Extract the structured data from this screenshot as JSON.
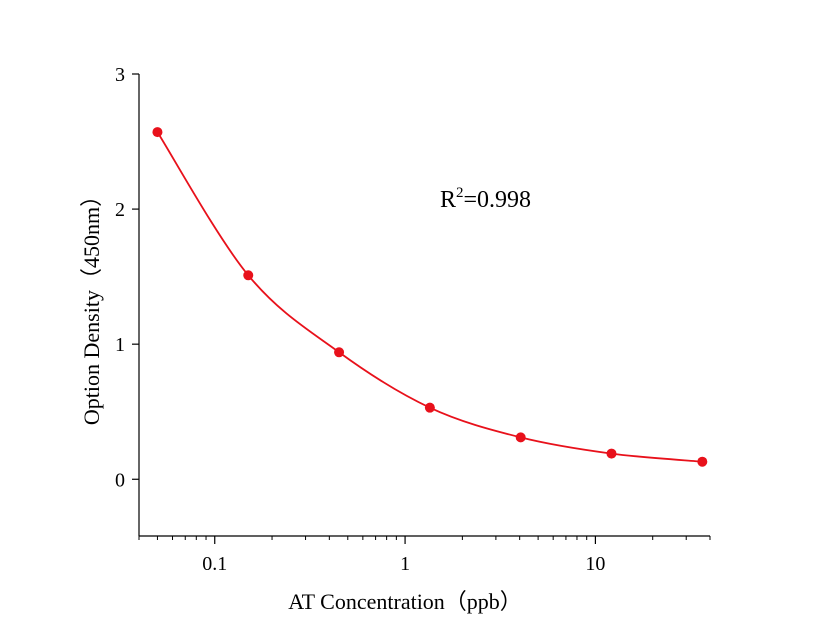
{
  "chart_data": {
    "type": "scatter",
    "xlabel": "AT Concentration（ppb）",
    "ylabel": "Option Density（450nm）",
    "x_scale": "log",
    "xlim": [
      0.04,
      40
    ],
    "ylim": [
      -0.42,
      3.0
    ],
    "x_ticks": [
      0.1,
      1,
      10
    ],
    "x_tick_labels": [
      "0.1",
      "1",
      "10"
    ],
    "y_ticks": [
      0,
      1,
      2,
      3
    ],
    "y_tick_labels": [
      "0",
      "1",
      "2",
      "3"
    ],
    "grid": false,
    "legend": "none",
    "series": [
      {
        "color": "#e8111b",
        "fit_line": true,
        "x": [
          0.05,
          0.15,
          0.45,
          1.35,
          4.05,
          12.15,
          36.45
        ],
        "y": [
          2.57,
          1.51,
          0.94,
          0.53,
          0.31,
          0.19,
          0.13
        ]
      }
    ],
    "annotation": {
      "base": "R",
      "sup": "2",
      "rest": "=0.998"
    }
  }
}
